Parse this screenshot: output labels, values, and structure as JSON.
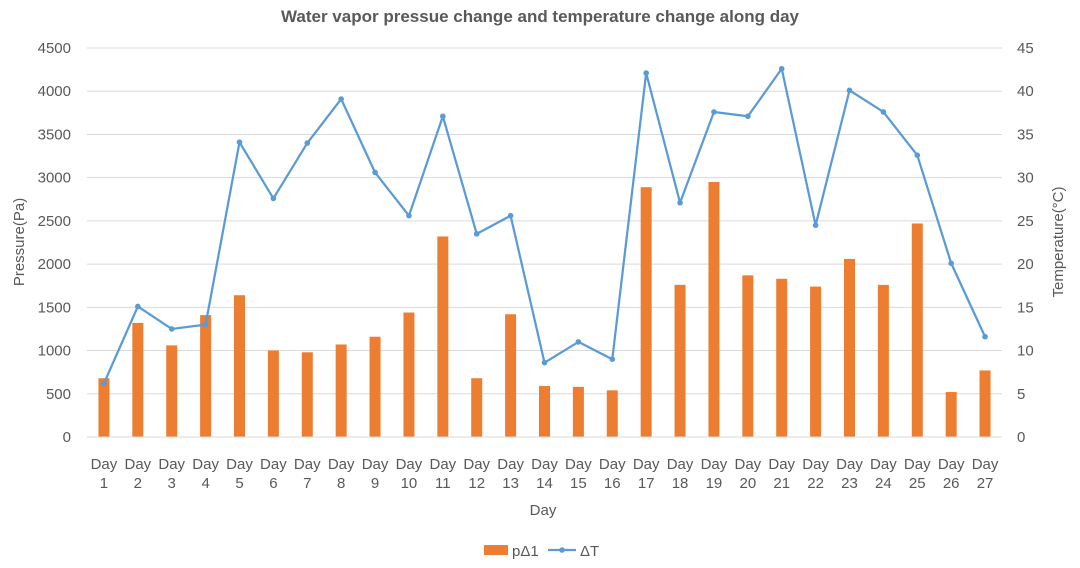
{
  "chart_data": {
    "type": "bar",
    "title": "Water vapor pressue change and temperature change along day",
    "xlabel": "Day",
    "ylabel": "Pressure(Pa)",
    "y2label": "Temperature(°C)",
    "categories": [
      [
        "Day",
        "1"
      ],
      [
        "Day",
        "2"
      ],
      [
        "Day",
        "3"
      ],
      [
        "Day",
        "4"
      ],
      [
        "Day",
        "5"
      ],
      [
        "Day",
        "6"
      ],
      [
        "Day",
        "7"
      ],
      [
        "Day",
        "8"
      ],
      [
        "Day",
        "9"
      ],
      [
        "Day",
        "10"
      ],
      [
        "Day",
        "11"
      ],
      [
        "Day",
        "12"
      ],
      [
        "Day",
        "13"
      ],
      [
        "Day",
        "14"
      ],
      [
        "Day",
        "15"
      ],
      [
        "Day",
        "16"
      ],
      [
        "Day",
        "17"
      ],
      [
        "Day",
        "18"
      ],
      [
        "Day",
        "19"
      ],
      [
        "Day",
        "20"
      ],
      [
        "Day",
        "21"
      ],
      [
        "Day",
        "22"
      ],
      [
        "Day",
        "23"
      ],
      [
        "Day",
        "24"
      ],
      [
        "Day",
        "25"
      ],
      [
        "Day",
        "26"
      ],
      [
        "Day",
        "27"
      ]
    ],
    "ylim": [
      0,
      4500
    ],
    "y2lim": [
      0,
      45
    ],
    "yticks": [
      "0",
      "500",
      "1000",
      "1500",
      "2000",
      "2500",
      "3000",
      "3500",
      "4000",
      "4500"
    ],
    "y2ticks": [
      "0",
      "5",
      "10",
      "15",
      "20",
      "25",
      "30",
      "35",
      "40",
      "45"
    ],
    "grid": true,
    "legend_position": "bottom",
    "series": [
      {
        "name": "pΔ1",
        "type": "bar",
        "axis": "left",
        "color": "#ED7D31",
        "values": [
          680,
          1320,
          1060,
          1410,
          1640,
          1000,
          980,
          1070,
          1160,
          1440,
          2320,
          680,
          1420,
          590,
          580,
          540,
          2890,
          1760,
          2950,
          1870,
          1830,
          1740,
          2060,
          1760,
          2470,
          520,
          770
        ]
      },
      {
        "name": "ΔT",
        "type": "line",
        "axis": "right",
        "color": "#5B9BD5",
        "values": [
          6.2,
          15.1,
          12.5,
          13.0,
          34.1,
          27.6,
          34.0,
          39.1,
          30.6,
          25.6,
          37.1,
          23.5,
          25.6,
          8.6,
          11.0,
          9.0,
          42.1,
          27.1,
          37.6,
          37.1,
          42.6,
          24.5,
          40.1,
          37.6,
          32.6,
          20.1,
          11.6
        ]
      }
    ]
  }
}
